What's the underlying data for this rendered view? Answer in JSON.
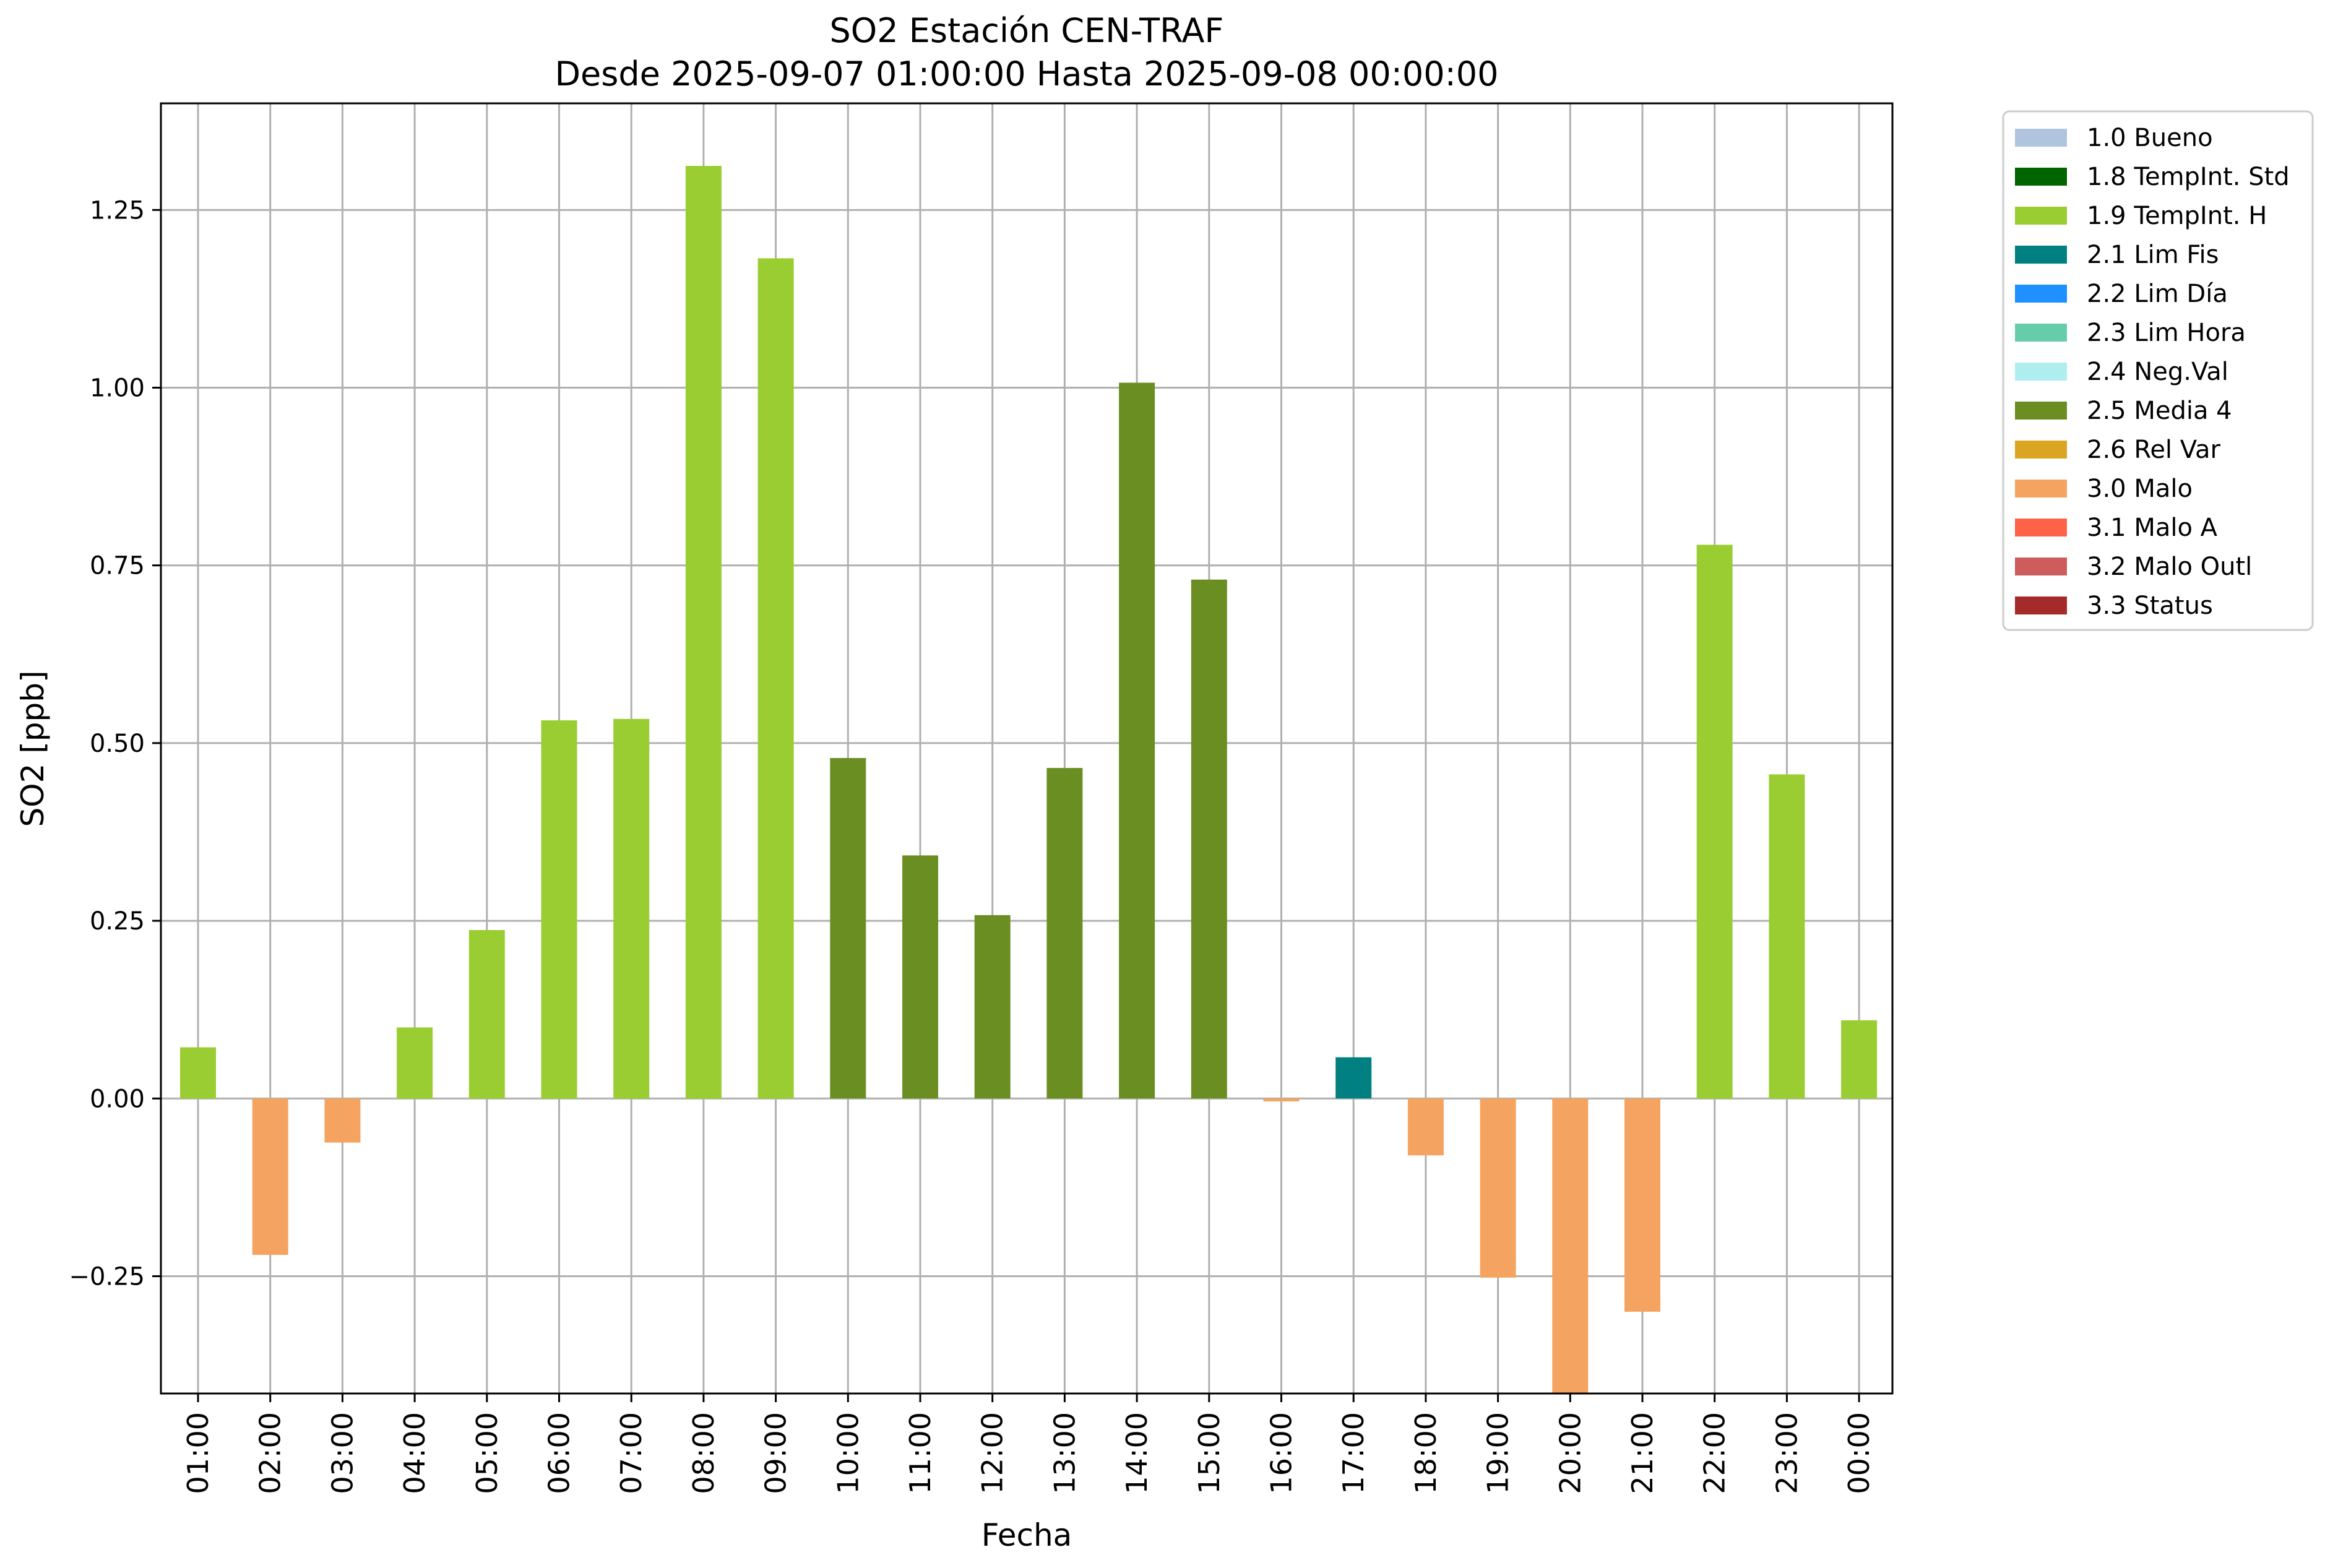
{
  "chart_data": {
    "type": "bar",
    "title": "SO2 Estación CEN-TRAF",
    "subtitle": "Desde 2025-09-07 01:00:00 Hasta 2025-09-08 00:00:00",
    "xlabel": "Fecha",
    "ylabel": "SO2 [ppb]",
    "ylim": [
      -0.415,
      1.4
    ],
    "yticks": [
      -0.25,
      0.0,
      0.25,
      0.5,
      0.75,
      1.0,
      1.25
    ],
    "ytick_labels": [
      "−0.25",
      "0.00",
      "0.25",
      "0.50",
      "0.75",
      "1.00",
      "1.25"
    ],
    "grid": true,
    "legend_position": "outside-top-right",
    "categories": [
      "01:00",
      "02:00",
      "03:00",
      "04:00",
      "05:00",
      "06:00",
      "07:00",
      "08:00",
      "09:00",
      "10:00",
      "11:00",
      "12:00",
      "13:00",
      "14:00",
      "15:00",
      "16:00",
      "17:00",
      "18:00",
      "19:00",
      "20:00",
      "21:00",
      "22:00",
      "23:00",
      "00:00"
    ],
    "values": [
      0.072,
      -0.22,
      -0.062,
      0.1,
      0.237,
      0.532,
      0.534,
      1.312,
      1.182,
      0.479,
      0.342,
      0.258,
      0.465,
      1.007,
      0.73,
      -0.004,
      0.058,
      -0.08,
      -0.252,
      -0.415,
      -0.3,
      0.779,
      0.456,
      0.11
    ],
    "flags": [
      "1.9",
      "3.0",
      "3.0",
      "1.9",
      "1.9",
      "1.9",
      "1.9",
      "1.9",
      "1.9",
      "2.5",
      "2.5",
      "2.5",
      "2.5",
      "2.5",
      "2.5",
      "3.0",
      "2.1",
      "3.0",
      "3.0",
      "3.0",
      "3.0",
      "1.9",
      "1.9",
      "1.9"
    ],
    "legend": [
      {
        "code": "1.0",
        "label": "1.0 Bueno",
        "color": "#b0c4de"
      },
      {
        "code": "1.8",
        "label": "1.8 TempInt. Std",
        "color": "#006400"
      },
      {
        "code": "1.9",
        "label": "1.9 TempInt. H",
        "color": "#9acd32"
      },
      {
        "code": "2.1",
        "label": "2.1 Lim Fis",
        "color": "#008080"
      },
      {
        "code": "2.2",
        "label": "2.2 Lim Día",
        "color": "#1e90ff"
      },
      {
        "code": "2.3",
        "label": "2.3 Lim Hora",
        "color": "#66cdaa"
      },
      {
        "code": "2.4",
        "label": "2.4 Neg.Val",
        "color": "#afeeee"
      },
      {
        "code": "2.5",
        "label": "2.5 Media 4",
        "color": "#6b8e23"
      },
      {
        "code": "2.6",
        "label": "2.6 Rel Var",
        "color": "#daa520"
      },
      {
        "code": "3.0",
        "label": "3.0 Malo",
        "color": "#f4a460"
      },
      {
        "code": "3.1",
        "label": "3.1 Malo A",
        "color": "#ff6347"
      },
      {
        "code": "3.2",
        "label": "3.2 Malo Outl",
        "color": "#cd5c5c"
      },
      {
        "code": "3.3",
        "label": "3.3 Status",
        "color": "#a52a2a"
      }
    ]
  }
}
